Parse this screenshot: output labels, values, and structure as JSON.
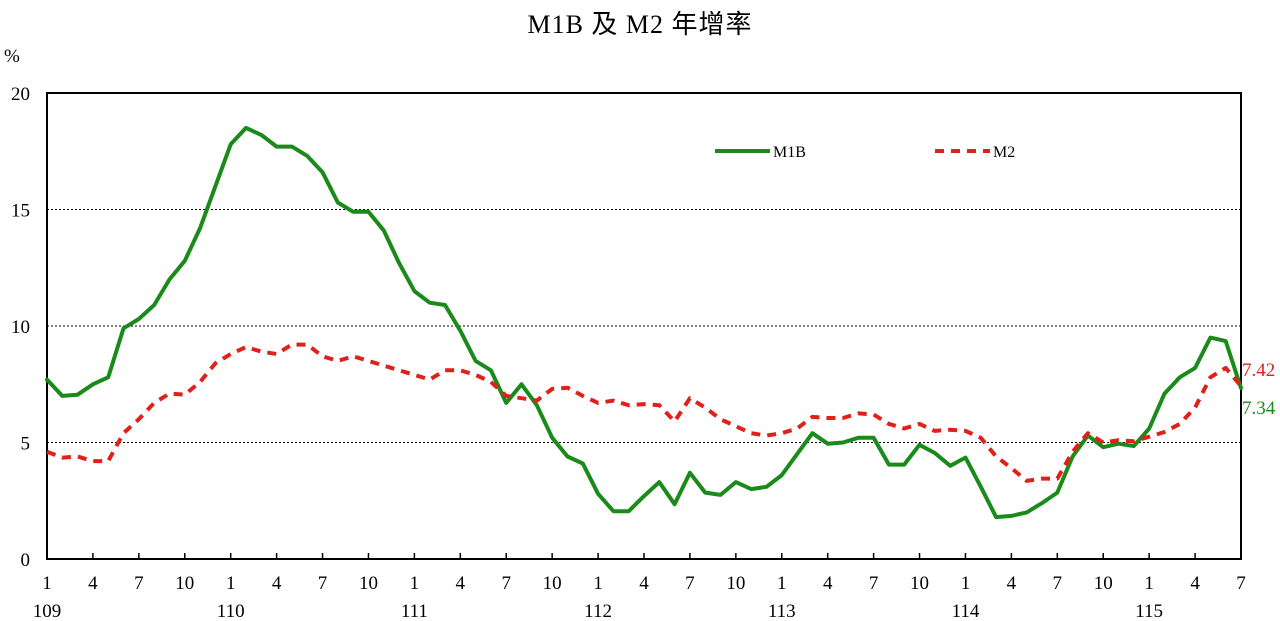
{
  "chart_data": {
    "type": "line",
    "title": "M1B 及 M2 年增率",
    "ylabel": "%",
    "ylim": [
      0,
      20
    ],
    "yticks": [
      0,
      5,
      10,
      15,
      20
    ],
    "grid_y": [
      5,
      10,
      15
    ],
    "legend_placement": "top-right",
    "x_month_ticks": [
      "1",
      "4",
      "7",
      "10",
      "1",
      "4",
      "7",
      "10",
      "1",
      "4",
      "7",
      "10",
      "1",
      "4",
      "7",
      "10",
      "1",
      "4",
      "7",
      "10",
      "1",
      "4",
      "7",
      "10",
      "1",
      "4",
      "7"
    ],
    "x_year_labels": [
      {
        "label": "109",
        "index": 0
      },
      {
        "label": "110",
        "index": 12
      },
      {
        "label": "111",
        "index": 24
      },
      {
        "label": "112",
        "index": 36
      },
      {
        "label": "113",
        "index": 48
      },
      {
        "label": "114",
        "index": 60
      },
      {
        "label": "115",
        "index": 72
      }
    ],
    "series": [
      {
        "name": "M1B",
        "color": "#1a8a1a",
        "style": "solid",
        "end_label": "7.34",
        "values": [
          7.7,
          7.0,
          7.05,
          7.5,
          7.8,
          9.9,
          10.3,
          10.9,
          12.0,
          12.8,
          14.2,
          16.0,
          17.8,
          18.5,
          18.2,
          17.7,
          17.7,
          17.3,
          16.6,
          15.3,
          14.9,
          14.9,
          14.1,
          12.7,
          11.5,
          11.0,
          10.9,
          9.8,
          8.5,
          8.1,
          6.7,
          7.5,
          6.6,
          5.2,
          4.4,
          4.1,
          2.8,
          2.05,
          2.05,
          2.7,
          3.3,
          2.35,
          3.7,
          2.85,
          2.75,
          3.3,
          3.0,
          3.1,
          3.6,
          4.5,
          5.4,
          4.95,
          5.0,
          5.2,
          5.2,
          4.05,
          4.05,
          4.9,
          4.55,
          4.0,
          4.35,
          3.1,
          1.8,
          1.85,
          2.0,
          2.4,
          2.85,
          4.4,
          5.3,
          4.8,
          4.95,
          4.85,
          5.6,
          7.1,
          7.8,
          8.2,
          9.5,
          9.35,
          7.34
        ]
      },
      {
        "name": "M2",
        "color": "#e0201a",
        "style": "dashed",
        "end_label": "7.42",
        "values": [
          4.6,
          4.35,
          4.4,
          4.2,
          4.2,
          5.4,
          6.0,
          6.7,
          7.1,
          7.05,
          7.6,
          8.4,
          8.8,
          9.1,
          8.9,
          8.8,
          9.2,
          9.2,
          8.7,
          8.5,
          8.7,
          8.5,
          8.3,
          8.1,
          7.9,
          7.7,
          8.1,
          8.1,
          7.9,
          7.6,
          7.0,
          6.9,
          6.8,
          7.3,
          7.35,
          7.0,
          6.7,
          6.8,
          6.6,
          6.65,
          6.6,
          5.9,
          6.9,
          6.5,
          6.0,
          5.7,
          5.4,
          5.3,
          5.4,
          5.6,
          6.1,
          6.05,
          6.05,
          6.25,
          6.2,
          5.8,
          5.6,
          5.8,
          5.5,
          5.55,
          5.5,
          5.2,
          4.4,
          3.9,
          3.35,
          3.45,
          3.45,
          4.6,
          5.4,
          5.0,
          5.1,
          5.05,
          5.25,
          5.45,
          5.8,
          6.5,
          7.8,
          8.2,
          7.42
        ]
      }
    ]
  }
}
